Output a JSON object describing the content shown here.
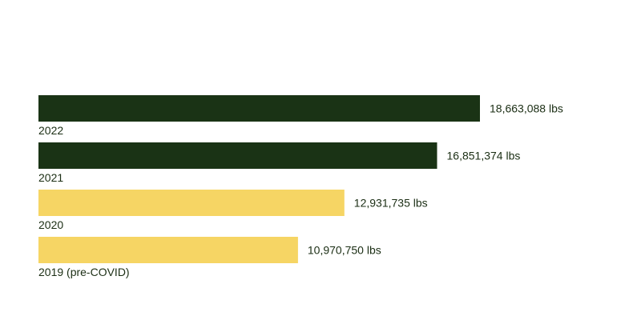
{
  "chart_data": {
    "type": "bar",
    "orientation": "horizontal",
    "categories": [
      "2022",
      "2021",
      "2020",
      "2019 (pre-COVID)"
    ],
    "values": [
      18663088,
      16851374,
      12931735,
      10970750
    ],
    "value_labels": [
      "18,663,088 lbs",
      "16,851,374 lbs",
      "12,931,735 lbs",
      "10,970,750 lbs"
    ],
    "bar_colors": [
      "#1a3315",
      "#1a3315",
      "#f6d564",
      "#f6d564"
    ],
    "title": "",
    "xlabel": "",
    "ylabel": "",
    "xlim": [
      0,
      18663088
    ],
    "grid": false,
    "legend": "none"
  }
}
